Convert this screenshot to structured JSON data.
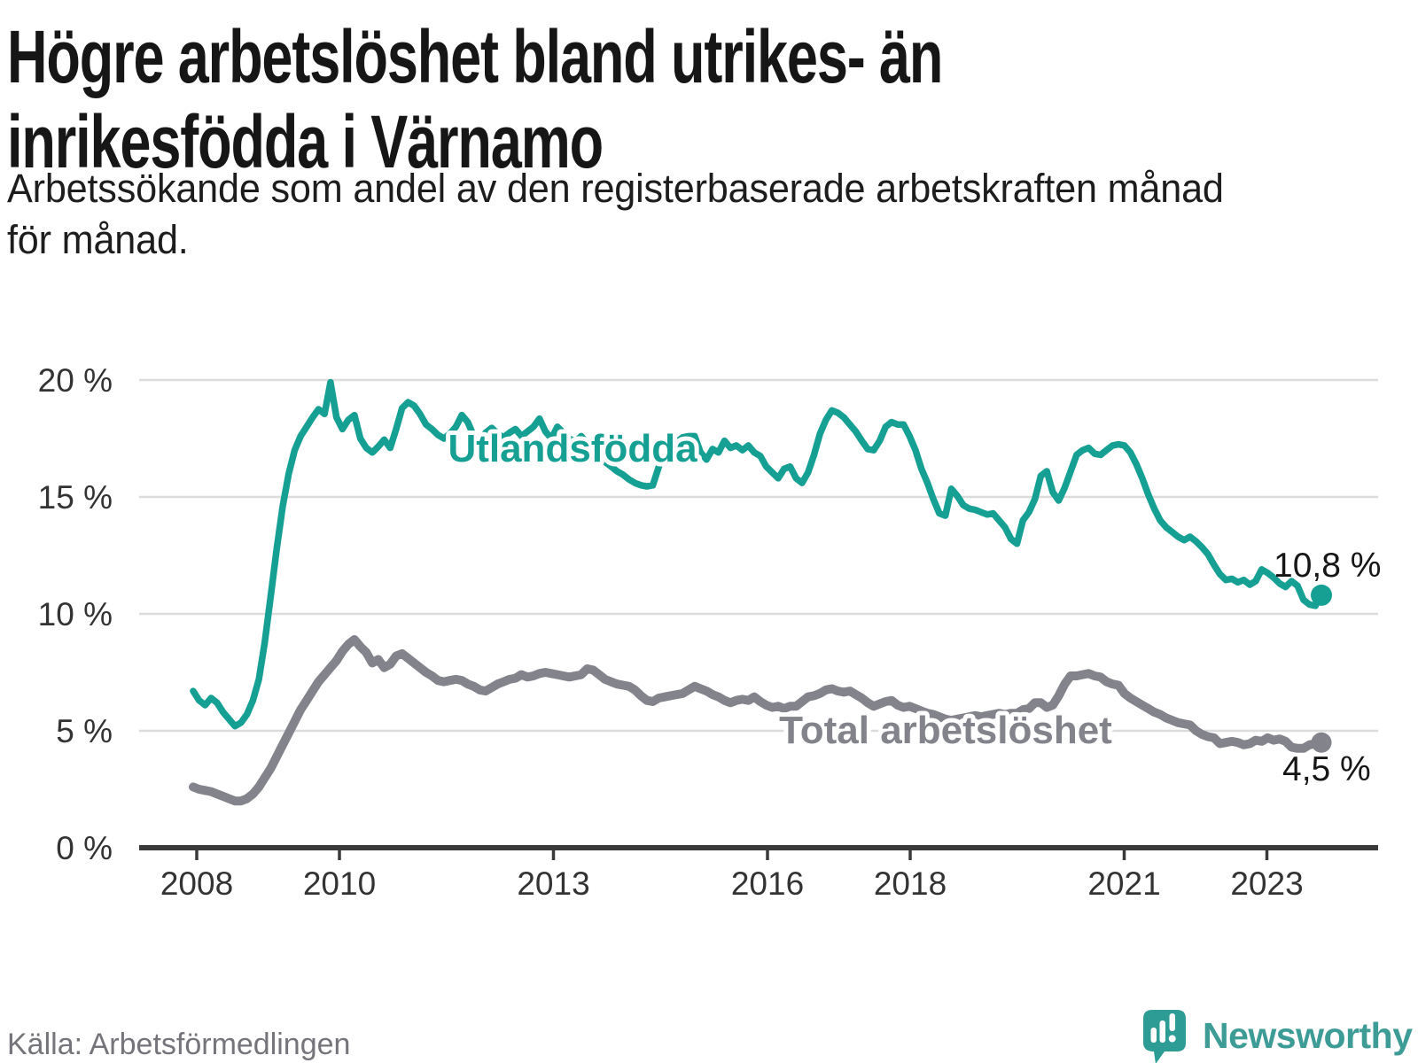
{
  "title": {
    "line1": "Högre arbetslöshet bland utrikes- än",
    "line2": "inrikesfödda i Värnamo"
  },
  "subtitle": {
    "line1": "Arbetssökande som andel av den registerbaserade arbetskraften månad",
    "line2": "för månad."
  },
  "source_note": "Källa: Arbetsförmedlingen",
  "branding": {
    "name": "Newsworthy",
    "icon": "newsworthy-speech-bubble-bar-chart"
  },
  "colors": {
    "foreign_born_line": "#16a094",
    "total_line": "#83838b",
    "grid": "#dcdcdc",
    "axis": "#3a3a3a",
    "tick_text": "#333333",
    "title_text": "#161616",
    "muted_text": "#74747a",
    "brand_teal": "#3e9c97"
  },
  "chart_data": {
    "type": "line",
    "title": "Högre arbetslöshet bland utrikes- än inrikesfödda i Värnamo",
    "subtitle": "Arbetssökande som andel av den registerbaserade arbetskraften månad för månad.",
    "x_unit": "month",
    "x_start": "2008-01",
    "x_end": "2023-10",
    "x_ticks": [
      2008,
      2010,
      2013,
      2016,
      2018,
      2021,
      2023
    ],
    "y_ticks": [
      "0 %",
      "5 %",
      "10 %",
      "15 %",
      "20 %"
    ],
    "y_tick_values": [
      0,
      5,
      10,
      15,
      20
    ],
    "ylim": [
      0,
      21
    ],
    "grid": "horizontal",
    "legend_position": "inline-labels",
    "series": [
      {
        "name": "Utlandsfödda",
        "color": "#16a094",
        "end_label": "10,8 %",
        "end_value": 10.8,
        "values": [
          6.7,
          6.3,
          6.1,
          6.4,
          6.2,
          5.8,
          5.5,
          5.2,
          5.35,
          5.7,
          6.3,
          7.2,
          8.8,
          10.8,
          12.8,
          14.6,
          16.0,
          17.0,
          17.6,
          18.0,
          18.4,
          18.75,
          18.55,
          19.9,
          18.4,
          17.9,
          18.3,
          18.5,
          17.5,
          17.1,
          16.9,
          17.15,
          17.45,
          17.1,
          17.9,
          18.8,
          19.05,
          18.9,
          18.55,
          18.1,
          17.9,
          17.65,
          17.5,
          17.7,
          18.0,
          18.5,
          18.2,
          17.6,
          17.4,
          17.75,
          17.95,
          17.7,
          17.55,
          17.75,
          17.9,
          17.6,
          17.8,
          18.0,
          18.35,
          17.8,
          17.5,
          18.0,
          17.75,
          17.5,
          17.35,
          17.6,
          17.3,
          17.0,
          16.75,
          16.5,
          16.3,
          16.1,
          15.95,
          15.75,
          15.6,
          15.5,
          15.45,
          15.5,
          16.3,
          17.1,
          17.55,
          17.35,
          17.55,
          17.6,
          17.6,
          16.9,
          16.6,
          17.05,
          16.9,
          17.4,
          17.1,
          17.2,
          17.0,
          17.2,
          16.9,
          16.75,
          16.3,
          16.05,
          15.8,
          16.2,
          16.3,
          15.8,
          15.6,
          16.05,
          16.8,
          17.7,
          18.3,
          18.7,
          18.6,
          18.4,
          18.1,
          17.8,
          17.4,
          17.05,
          17.0,
          17.4,
          18.0,
          18.2,
          18.1,
          18.1,
          17.6,
          17.0,
          16.2,
          15.6,
          14.9,
          14.3,
          14.2,
          15.35,
          15.05,
          14.65,
          14.5,
          14.45,
          14.35,
          14.25,
          14.3,
          14.0,
          13.7,
          13.2,
          13.0,
          14.0,
          14.35,
          14.9,
          15.9,
          16.1,
          15.2,
          14.85,
          15.4,
          16.1,
          16.8,
          17.0,
          17.1,
          16.85,
          16.8,
          17.0,
          17.2,
          17.25,
          17.2,
          16.9,
          16.4,
          15.8,
          15.1,
          14.5,
          14.0,
          13.7,
          13.5,
          13.3,
          13.15,
          13.3,
          13.1,
          12.85,
          12.55,
          12.1,
          11.7,
          11.45,
          11.5,
          11.35,
          11.45,
          11.25,
          11.4,
          11.9,
          11.75,
          11.55,
          11.3,
          11.15,
          11.4,
          11.2,
          10.6,
          10.4,
          10.35,
          10.8
        ]
      },
      {
        "name": "Total arbetslöshet",
        "color": "#83838b",
        "end_label": "4,5 %",
        "end_value": 4.5,
        "values": [
          2.6,
          2.5,
          2.45,
          2.4,
          2.3,
          2.2,
          2.1,
          2.0,
          2.0,
          2.1,
          2.3,
          2.6,
          3.0,
          3.4,
          3.9,
          4.4,
          4.9,
          5.4,
          5.9,
          6.3,
          6.7,
          7.1,
          7.4,
          7.7,
          8.0,
          8.4,
          8.7,
          8.9,
          8.6,
          8.35,
          7.9,
          8.05,
          7.7,
          7.85,
          8.2,
          8.3,
          8.1,
          7.9,
          7.7,
          7.5,
          7.35,
          7.15,
          7.1,
          7.15,
          7.2,
          7.15,
          7.0,
          6.9,
          6.75,
          6.7,
          6.85,
          7.0,
          7.1,
          7.2,
          7.25,
          7.4,
          7.3,
          7.35,
          7.45,
          7.5,
          7.45,
          7.4,
          7.35,
          7.3,
          7.35,
          7.4,
          7.65,
          7.6,
          7.4,
          7.2,
          7.1,
          7.0,
          6.95,
          6.9,
          6.75,
          6.5,
          6.3,
          6.25,
          6.4,
          6.45,
          6.5,
          6.55,
          6.6,
          6.75,
          6.9,
          6.8,
          6.7,
          6.55,
          6.45,
          6.3,
          6.2,
          6.3,
          6.35,
          6.3,
          6.45,
          6.25,
          6.1,
          6.0,
          6.05,
          5.95,
          6.05,
          6.05,
          6.25,
          6.45,
          6.5,
          6.6,
          6.75,
          6.8,
          6.7,
          6.65,
          6.7,
          6.55,
          6.4,
          6.2,
          6.05,
          6.15,
          6.25,
          6.3,
          6.1,
          6.0,
          6.05,
          5.95,
          5.85,
          5.75,
          5.7,
          5.6,
          5.5,
          5.45,
          5.5,
          5.55,
          5.6,
          5.65,
          5.6,
          5.65,
          5.7,
          5.75,
          5.7,
          5.75,
          5.75,
          5.9,
          5.95,
          6.2,
          6.2,
          6.0,
          6.1,
          6.5,
          7.0,
          7.35,
          7.35,
          7.4,
          7.45,
          7.35,
          7.3,
          7.1,
          7.0,
          6.95,
          6.6,
          6.4,
          6.25,
          6.1,
          5.95,
          5.8,
          5.7,
          5.55,
          5.45,
          5.35,
          5.3,
          5.25,
          5.0,
          4.85,
          4.75,
          4.7,
          4.45,
          4.5,
          4.55,
          4.5,
          4.4,
          4.45,
          4.6,
          4.55,
          4.7,
          4.6,
          4.65,
          4.55,
          4.3,
          4.25,
          4.25,
          4.4,
          4.45,
          4.5
        ]
      }
    ]
  }
}
